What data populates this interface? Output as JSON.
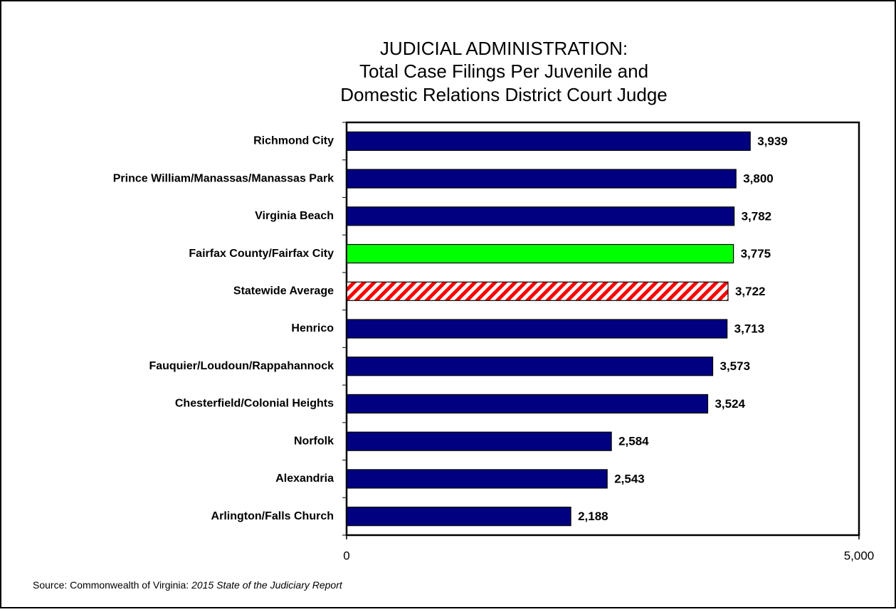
{
  "chart_data": {
    "type": "bar",
    "orientation": "horizontal",
    "title": [
      "JUDICIAL ADMINISTRATION:",
      "Total Case Filings Per Juvenile and",
      "Domestic Relations District Court Judge"
    ],
    "categories": [
      "Richmond City",
      "Prince William/Manassas/Manassas Park",
      "Virginia Beach",
      "Fairfax County/Fairfax City",
      "Statewide Average",
      "Henrico",
      "Fauquier/Loudoun/Rappahannock",
      "Chesterfield/Colonial Heights",
      "Norfolk",
      "Alexandria",
      "Arlington/Falls Church"
    ],
    "values": [
      3939,
      3800,
      3782,
      3775,
      3722,
      3713,
      3573,
      3524,
      2584,
      2543,
      2188
    ],
    "value_labels": [
      "3,939",
      "3,800",
      "3,782",
      "3,775",
      "3,722",
      "3,713",
      "3,573",
      "3,524",
      "2,584",
      "2,543",
      "2,188"
    ],
    "colors": [
      "#000080",
      "#000080",
      "#000080",
      "#00ff00",
      "#ff0000",
      "#000080",
      "#000080",
      "#000080",
      "#000080",
      "#000080",
      "#000080"
    ],
    "hatch": [
      false,
      false,
      false,
      false,
      true,
      false,
      false,
      false,
      false,
      false,
      false
    ],
    "xlim": [
      0,
      5000
    ],
    "xticks": [
      0,
      {
        "value": 5000,
        "label": "5,000"
      }
    ],
    "grid": false,
    "source": {
      "text": "Source: Commonwealth of Virginia: ",
      "italic": "2015 State of the Judiciary Report"
    }
  }
}
